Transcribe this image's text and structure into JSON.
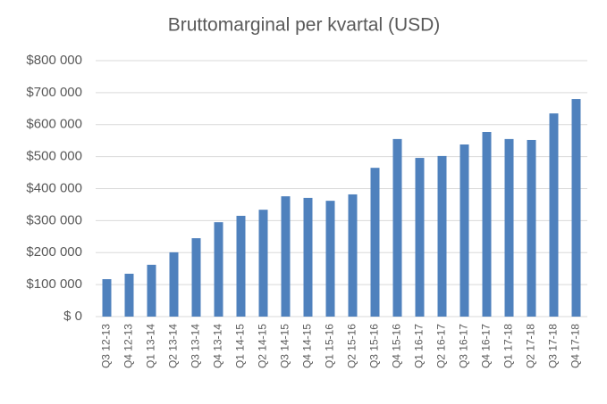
{
  "chart_data": {
    "type": "bar",
    "title": "Bruttomarginal per kvartal (USD)",
    "categories": [
      "Q3 12-13",
      "Q4 12-13",
      "Q1 13-14",
      "Q2 13-14",
      "Q3 13-14",
      "Q4 13-14",
      "Q1 14-15",
      "Q2 14-15",
      "Q3 14-15",
      "Q4 14-15",
      "Q1 15-16",
      "Q2 15-16",
      "Q3 15-16",
      "Q4 15-16",
      "Q1 16-17",
      "Q2 16-17",
      "Q3 16-17",
      "Q4 16-17",
      "Q1 17-18",
      "Q2 17-18",
      "Q3 17-18",
      "Q4 17-18"
    ],
    "values": [
      117000,
      134000,
      162000,
      201000,
      245000,
      295000,
      315000,
      334000,
      376000,
      371000,
      362000,
      382000,
      465000,
      555000,
      496000,
      502000,
      538000,
      577000,
      555000,
      552000,
      635000,
      680000
    ],
    "color": "#4f81bd",
    "ylim": [
      0,
      800000
    ],
    "yticks": [
      {
        "value": 0,
        "label": "$ 0"
      },
      {
        "value": 100000,
        "label": "$100 000"
      },
      {
        "value": 200000,
        "label": "$200 000"
      },
      {
        "value": 300000,
        "label": "$300 000"
      },
      {
        "value": 400000,
        "label": "$400 000"
      },
      {
        "value": 500000,
        "label": "$500 000"
      },
      {
        "value": 600000,
        "label": "$600 000"
      },
      {
        "value": 700000,
        "label": "$700 000"
      },
      {
        "value": 800000,
        "label": "$800 000"
      }
    ],
    "grid": true
  }
}
